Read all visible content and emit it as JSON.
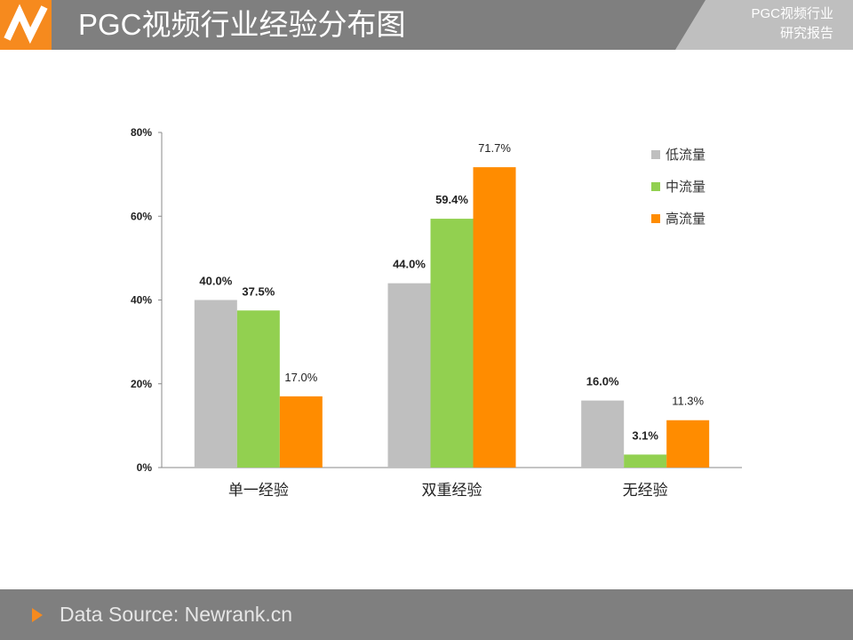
{
  "header": {
    "title": "PGC视频行业经验分布图",
    "tag_line1": "PGC视频行业",
    "tag_line2": "研究报告",
    "accent_color": "#f68a1e",
    "bar_color": "#7f7f7f"
  },
  "footer": {
    "source": "Data Source: Newrank.cn"
  },
  "chart_data": {
    "type": "bar",
    "categories": [
      "单一经验",
      "双重经验",
      "无经验"
    ],
    "series": [
      {
        "name": "低流量",
        "color": "#bfbfbf",
        "values": [
          40.0,
          44.0,
          16.0
        ],
        "labels": [
          "40.0%",
          "44.0%",
          "16.0%"
        ]
      },
      {
        "name": "中流量",
        "color": "#92d050",
        "values": [
          37.5,
          59.4,
          3.1
        ],
        "labels": [
          "37.5%",
          "59.4%",
          "3.1%"
        ]
      },
      {
        "name": "高流量",
        "color": "#ff8c00",
        "values": [
          17.0,
          71.7,
          11.3
        ],
        "labels": [
          "17.0%",
          "71.7%",
          "11.3%"
        ]
      }
    ],
    "ylim": [
      0,
      80
    ],
    "yticks": [
      "0%",
      "20%",
      "40%",
      "60%",
      "80%"
    ],
    "legend_position": "top-right",
    "grid": false
  }
}
